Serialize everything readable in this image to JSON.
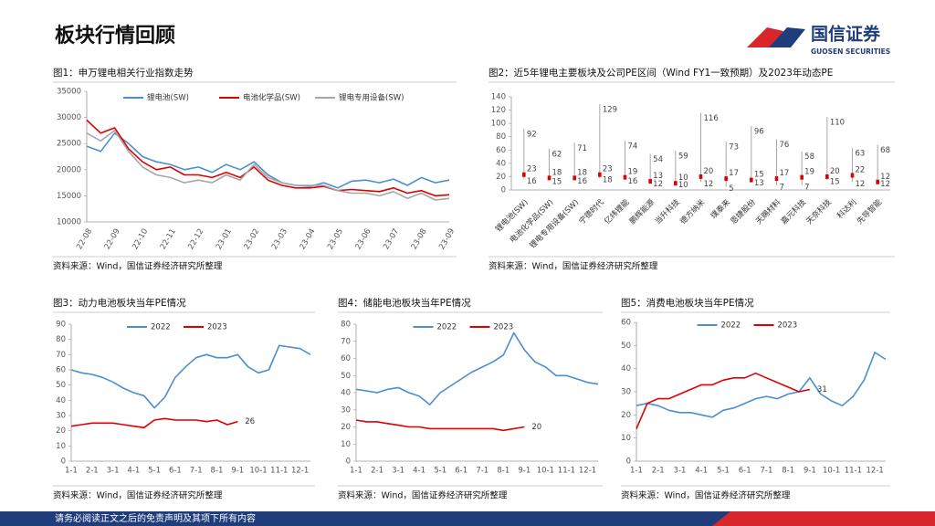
{
  "header": {
    "title": "板块行情回顾",
    "logo_name": "国信证券",
    "logo_sub": "GUOSEN SECURITIES"
  },
  "footer": {
    "text": "请务必阅读正文之后的免责声明及其项下所有内容"
  },
  "chart_data": [
    {
      "type": "line",
      "title": "图1：申万锂电相关行业指数走势",
      "categories": [
        "22-08",
        null,
        "22-09",
        null,
        "22-10",
        null,
        "22-11",
        null,
        "22-12",
        null,
        "23-01",
        null,
        "23-02",
        null,
        "23-03",
        null,
        "23-04",
        null,
        "23-05",
        null,
        "23-06",
        null,
        "23-07",
        null,
        "23-08",
        null,
        "23-09"
      ],
      "series": [
        {
          "name": "锂电池(SW)",
          "color": "#4a8fd0",
          "values": [
            24500,
            23500,
            27000,
            25000,
            22500,
            21500,
            21000,
            20000,
            20500,
            19500,
            21000,
            20000,
            21500,
            19000,
            17500,
            17000,
            16800,
            17500,
            16500,
            17800,
            18000,
            17500,
            18200,
            17000,
            18500,
            17500,
            18000
          ]
        },
        {
          "name": "电池化学品(SW)",
          "color": "#e00000",
          "values": [
            29500,
            27000,
            28000,
            24000,
            21500,
            20000,
            20500,
            19000,
            19000,
            18500,
            19500,
            18500,
            20500,
            18000,
            17000,
            16500,
            16500,
            16800,
            16000,
            16200,
            16000,
            15800,
            16500,
            15500,
            16000,
            15000,
            15200
          ]
        },
        {
          "name": "锂电专用设备(SW)",
          "color": "#a6a6a6",
          "values": [
            27000,
            25500,
            27500,
            23500,
            20500,
            19000,
            18500,
            17500,
            18000,
            17500,
            19000,
            18000,
            21000,
            18500,
            17500,
            17000,
            17000,
            17000,
            16000,
            15500,
            15500,
            15000,
            15800,
            14500,
            15500,
            14200,
            14500
          ]
        }
      ],
      "ylim": [
        10000,
        35000
      ],
      "yticks": [
        10000,
        15000,
        20000,
        25000,
        30000,
        35000
      ],
      "source": "资料来源：Wind，国信证券经济研究所整理"
    },
    {
      "type": "range",
      "title": "图2：近5年锂电主要板块及公司PE区间（Wind FY1一致预期）及2023年动态PE",
      "categories": [
        "锂电池(SW)",
        "电池化学品(SW)",
        "锂电专用设备(SW)",
        "宁德时代",
        "亿纬锂能",
        "鹏辉能源",
        "当升科技",
        "德方纳米",
        "璞泰来",
        "恩捷股份",
        "天赐材料",
        "嘉元科技",
        "天奈科技",
        "科达利",
        "先导智能"
      ],
      "series": [
        {
          "color": "#a6a6a6",
          "values": [
            92,
            62,
            71,
            129,
            74,
            54,
            59,
            116,
            73,
            96,
            76,
            58,
            110,
            63,
            68
          ]
        },
        {
          "color": "#a6a6a6",
          "values": [
            16,
            15,
            16,
            18,
            16,
            12,
            10,
            12,
            5,
            13,
            7,
            7,
            15,
            12,
            12
          ]
        },
        {
          "color": "#e00000",
          "values": [
            23,
            18,
            18,
            23,
            19,
            13,
            10,
            20,
            17,
            15,
            17,
            19,
            20,
            22,
            12
          ]
        }
      ],
      "ylim": [
        0,
        140
      ],
      "yticks": [
        0,
        20,
        40,
        60,
        80,
        100,
        120,
        140
      ],
      "source": "资料来源：Wind，国信证券经济研究所整理"
    },
    {
      "type": "line",
      "title": "图3：动力电池板块当年PE情况",
      "categories": [
        "1-1",
        null,
        "2-1",
        null,
        "3-1",
        null,
        "4-1",
        null,
        "5-1",
        null,
        "6-1",
        null,
        "7-1",
        null,
        "8-1",
        null,
        "9-1",
        null,
        "10-1",
        null,
        "11-1",
        null,
        "12-1",
        null
      ],
      "series": [
        {
          "name": "2022",
          "color": "#4a8fd0",
          "values": [
            60,
            58,
            57,
            55,
            52,
            48,
            45,
            43,
            35,
            42,
            55,
            62,
            68,
            70,
            68,
            68,
            70,
            62,
            58,
            60,
            76,
            75,
            74,
            70
          ]
        },
        {
          "name": "2023",
          "color": "#e00000",
          "end_label": "26",
          "values": [
            23,
            24,
            25,
            25,
            25,
            24,
            23,
            22,
            27,
            28,
            27,
            27,
            27,
            26,
            27,
            24,
            26,
            null,
            null,
            null,
            null,
            null,
            null,
            null
          ]
        }
      ],
      "ylim": [
        0,
        90
      ],
      "yticks": [
        0,
        10,
        20,
        30,
        40,
        50,
        60,
        70,
        80,
        90
      ],
      "source": "资料来源：Wind，国信证券经济研究所整理"
    },
    {
      "type": "line",
      "title": "图4：储能电池板块当年PE情况",
      "categories": [
        "1-1",
        null,
        "2-1",
        null,
        "3-1",
        null,
        "4-1",
        null,
        "5-1",
        null,
        "6-1",
        null,
        "7-1",
        null,
        "8-1",
        null,
        "9-1",
        null,
        "10-1",
        null,
        "11-1",
        null,
        "12-1",
        null
      ],
      "series": [
        {
          "name": "2022",
          "color": "#4a8fd0",
          "values": [
            42,
            41,
            40,
            42,
            43,
            40,
            38,
            33,
            40,
            44,
            48,
            52,
            55,
            58,
            62,
            75,
            65,
            58,
            55,
            50,
            50,
            48,
            46,
            45
          ]
        },
        {
          "name": "2023",
          "color": "#e00000",
          "end_label": "20",
          "values": [
            24,
            23,
            23,
            22,
            21,
            20,
            20,
            19,
            19,
            19,
            19,
            19,
            19,
            19,
            18,
            19,
            20,
            null,
            null,
            null,
            null,
            null,
            null,
            null
          ]
        }
      ],
      "ylim": [
        0,
        80
      ],
      "yticks": [
        0,
        10,
        20,
        30,
        40,
        50,
        60,
        70,
        80
      ],
      "source": "资料来源：Wind，国信证券经济研究所整理"
    },
    {
      "type": "line",
      "title": "图5：消费电池板块当年PE情况",
      "categories": [
        "1-1",
        null,
        "2-1",
        null,
        "3-1",
        null,
        "4-1",
        null,
        "5-1",
        null,
        "6-1",
        null,
        "7-1",
        null,
        "8-1",
        null,
        "9-1",
        null,
        "10-1",
        null,
        "11-1",
        null,
        "12-1",
        null
      ],
      "series": [
        {
          "name": "2022",
          "color": "#4a8fd0",
          "values": [
            24,
            25,
            24,
            22,
            21,
            21,
            20,
            19,
            22,
            23,
            25,
            27,
            28,
            27,
            29,
            30,
            36,
            29,
            26,
            24,
            28,
            35,
            47,
            44
          ]
        },
        {
          "name": "2023",
          "color": "#e00000",
          "end_label": "31",
          "values": [
            14,
            25,
            27,
            27,
            29,
            31,
            33,
            33,
            35,
            36,
            36,
            38,
            36,
            34,
            32,
            30,
            31,
            null,
            null,
            null,
            null,
            null,
            null,
            null
          ]
        }
      ],
      "ylim": [
        0,
        60
      ],
      "yticks": [
        0,
        10,
        20,
        30,
        40,
        50,
        60
      ],
      "source": "资料来源：Wind，国信证券经济研究所整理"
    }
  ]
}
